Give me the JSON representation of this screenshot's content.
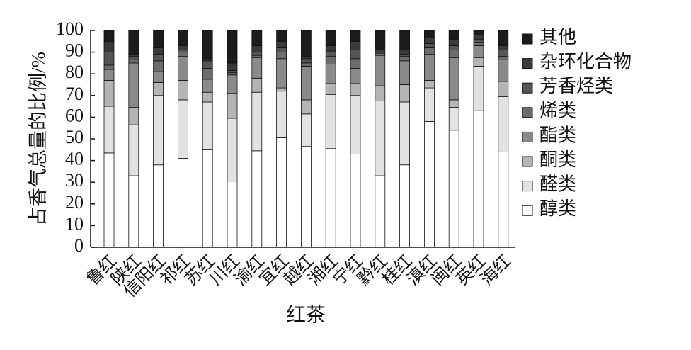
{
  "chart_data": {
    "type": "stacked_bar",
    "x_label": "红茶",
    "y_label": "占香气总量的比例/%",
    "categories": [
      "鲁红",
      "陕红",
      "信阳红",
      "祁红",
      "苏红",
      "川红",
      "渝红",
      "宜红",
      "越红",
      "湘红",
      "宁红",
      "黔红",
      "桂红",
      "滇红",
      "闽红",
      "英红",
      "海红"
    ],
    "series": [
      {
        "name": "醇类",
        "color": "#ffffff",
        "values": [
          43.5,
          33,
          38,
          41,
          45,
          30.5,
          44.5,
          50.5,
          46.5,
          45.5,
          43,
          33,
          38,
          58,
          54,
          63,
          44
        ]
      },
      {
        "name": "醛类",
        "color": "#e2e2e2",
        "values": [
          21.5,
          23.5,
          32,
          27,
          22,
          29,
          27,
          21.5,
          15,
          25,
          27,
          34.5,
          29,
          15.5,
          10.5,
          20.5,
          25.5
        ]
      },
      {
        "name": "酮类",
        "color": "#b4b4b4",
        "values": [
          12,
          8,
          6,
          9,
          4.5,
          11.5,
          6.5,
          1.5,
          6.5,
          5,
          5.5,
          7,
          8,
          3.5,
          3.5,
          4,
          7
        ]
      },
      {
        "name": "酯类",
        "color": "#8a8a8a",
        "values": [
          5,
          20.5,
          5,
          11,
          6,
          8.5,
          9.5,
          13.5,
          15.5,
          9,
          7,
          14,
          11,
          12,
          19.5,
          5.5,
          10
        ]
      },
      {
        "name": "烯类",
        "color": "#6c6c6c",
        "values": [
          2,
          1.5,
          5,
          2,
          5,
          1,
          1,
          3,
          1.5,
          3.5,
          4.5,
          1,
          2,
          3,
          3.5,
          1.5,
          1.5
        ]
      },
      {
        "name": "芳香烃类",
        "color": "#555555",
        "values": [
          6,
          1.5,
          3,
          1,
          3.5,
          1,
          1.5,
          2,
          2,
          2.5,
          4,
          0.5,
          1,
          2,
          2,
          1.5,
          3
        ]
      },
      {
        "name": "杂环化合物",
        "color": "#3a3a3a",
        "values": [
          5,
          1,
          3,
          2,
          1,
          3.5,
          3,
          3,
          1,
          2.5,
          4,
          1,
          2,
          3,
          3,
          2,
          2
        ]
      },
      {
        "name": "其他",
        "color": "#1c1c1c",
        "values": [
          5,
          11,
          8,
          7,
          13,
          15,
          7,
          5,
          12,
          7,
          5,
          9,
          9,
          3,
          4,
          2,
          7
        ]
      }
    ],
    "ylim": [
      0,
      100
    ],
    "yticks": [
      0,
      10,
      20,
      30,
      40,
      50,
      60,
      70,
      80,
      90,
      100
    ],
    "legend": "right"
  }
}
